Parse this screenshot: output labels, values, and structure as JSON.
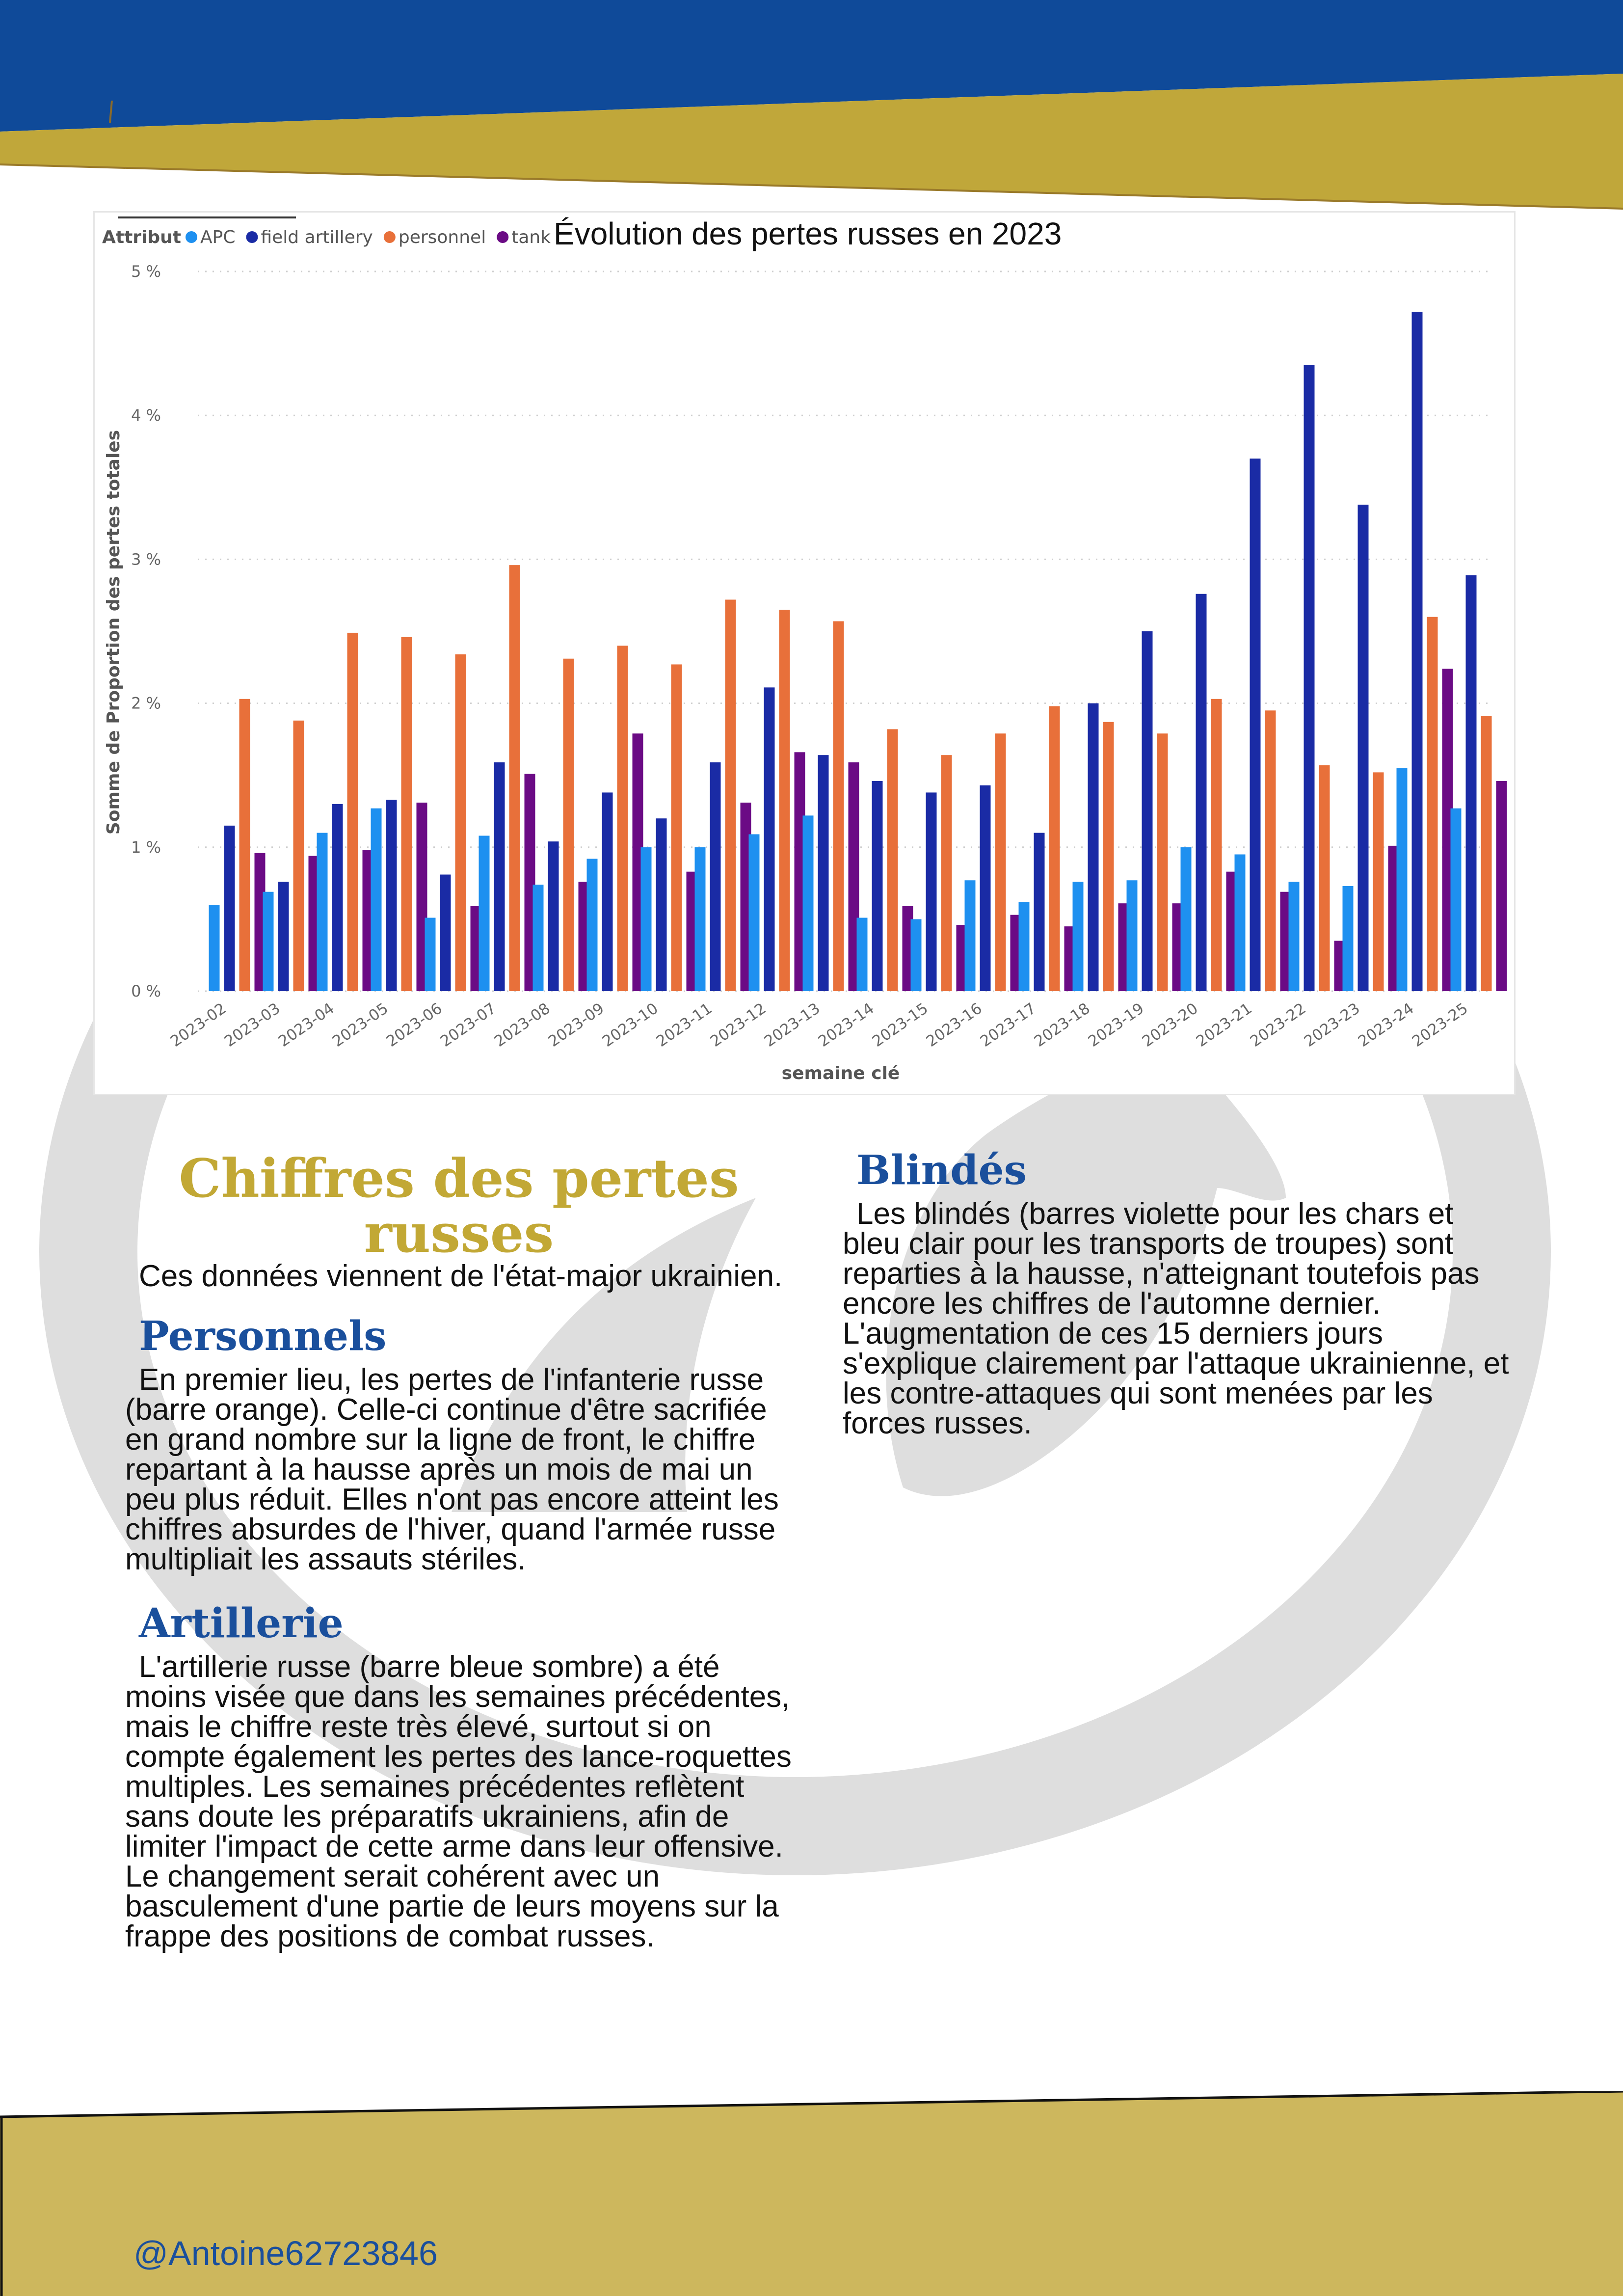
{
  "colors": {
    "header_blue": "#0f4a99",
    "header_gold": "#c0a73a",
    "footer_gold": "#cdb75d",
    "heading_gold": "#c2a835",
    "heading_blue": "#1a4f9c",
    "emblem_gray": "#dedede"
  },
  "chart_data": {
    "type": "bar",
    "title": "Évolution des pertes russes en 2023",
    "legend_title": "Attribut",
    "legend_position": "top-left",
    "xlabel": "semaine clé",
    "ylabel": "Somme de Proportion des pertes totales",
    "ylim": [
      0,
      5
    ],
    "y_ticks": [
      "0 %",
      "1 %",
      "2 %",
      "3 %",
      "4 %",
      "5 %"
    ],
    "grid": true,
    "categories": [
      "2023-02",
      "2023-03",
      "2023-04",
      "2023-05",
      "2023-06",
      "2023-07",
      "2023-08",
      "2023-09",
      "2023-10",
      "2023-11",
      "2023-12",
      "2023-13",
      "2023-14",
      "2023-15",
      "2023-16",
      "2023-17",
      "2023-18",
      "2023-19",
      "2023-20",
      "2023-21",
      "2023-22",
      "2023-23",
      "2023-24",
      "2023-25"
    ],
    "series": [
      {
        "name": "APC",
        "color": "#1e90f0",
        "values": [
          0.6,
          0.69,
          1.1,
          1.27,
          0.51,
          1.08,
          0.74,
          0.92,
          1.0,
          1.0,
          1.09,
          1.22,
          0.51,
          0.5,
          0.77,
          0.62,
          0.76,
          0.77,
          1.0,
          0.95,
          0.76,
          0.73,
          1.55,
          1.27
        ]
      },
      {
        "name": "field artillery",
        "color": "#1a2ba5",
        "values": [
          1.15,
          0.76,
          1.3,
          1.33,
          0.81,
          1.59,
          1.04,
          1.38,
          1.2,
          1.59,
          2.11,
          1.64,
          1.46,
          1.38,
          1.43,
          1.1,
          2.0,
          2.5,
          2.76,
          3.7,
          4.35,
          3.38,
          4.72,
          2.89
        ]
      },
      {
        "name": "personnel",
        "color": "#e8703a",
        "values": [
          2.03,
          1.88,
          2.49,
          2.46,
          2.34,
          2.96,
          2.31,
          2.4,
          2.27,
          2.72,
          2.65,
          2.57,
          1.82,
          1.64,
          1.79,
          1.98,
          1.87,
          1.79,
          2.03,
          1.95,
          1.57,
          1.52,
          2.6,
          1.91
        ]
      },
      {
        "name": "tank",
        "color": "#6b0b85",
        "values": [
          0.96,
          0.94,
          0.98,
          1.31,
          0.59,
          1.51,
          0.76,
          1.79,
          0.83,
          1.31,
          1.66,
          1.59,
          0.59,
          0.46,
          0.53,
          0.45,
          0.61,
          0.61,
          0.83,
          0.69,
          0.35,
          1.01,
          2.24,
          1.46
        ]
      }
    ]
  },
  "article": {
    "main_heading": "Chiffres des pertes russes",
    "intro": "Ces données viennent de l'état-major ukrainien.",
    "sections": [
      {
        "heading": "Personnels",
        "text": "En premier lieu, les pertes de l'infanterie russe (barre orange). Celle-ci continue d'être sacrifiée en grand nombre sur la ligne de front, le chiffre repartant à la hausse après un mois de mai un peu plus réduit. Elles n'ont pas encore atteint les chiffres absurdes de l'hiver, quand l'armée russe multipliait les assauts stériles."
      },
      {
        "heading": "Artillerie",
        "text": "L'artillerie russe (barre bleue sombre) a été moins visée que dans les semaines précédentes, mais le chiffre reste très élevé, surtout si on compte également les pertes des lance-roquettes multiples. Les semaines précédentes reflètent sans doute les préparatifs ukrainiens, afin de limiter l'impact de cette arme dans leur offensive. Le changement serait cohérent avec un basculement d'une partie de leurs moyens sur la frappe des positions de combat russes."
      },
      {
        "heading": "Blindés",
        "text": "Les blindés (barres violette pour les chars et bleu clair pour les transports de troupes) sont reparties à la hausse, n'atteignant toutefois pas encore les chiffres de l'automne dernier. L'augmentation de ces 15 derniers jours s'explique clairement par l'attaque ukrainienne, et les contre-attaques qui sont menées par les forces russes."
      }
    ]
  },
  "footer": {
    "handle": "@Antoine62723846"
  }
}
